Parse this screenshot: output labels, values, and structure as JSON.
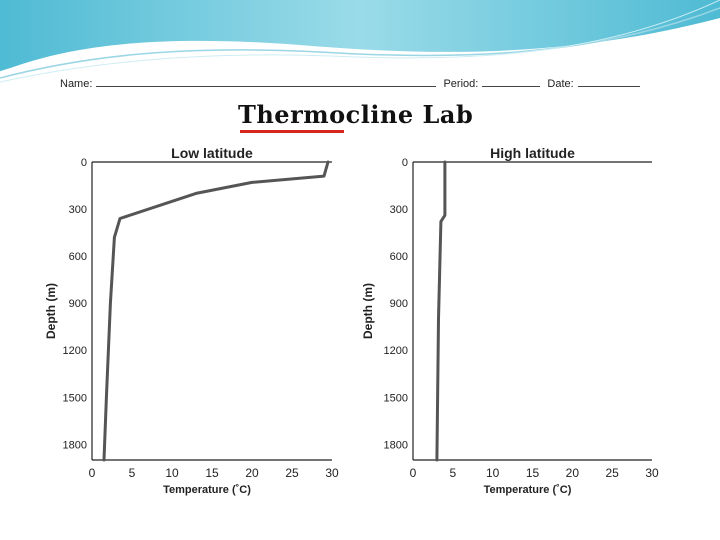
{
  "header": {
    "name_label": "Name:",
    "period_label": "Period:",
    "date_label": "Date:"
  },
  "title": "Thermocline Lab",
  "chart_data": [
    {
      "type": "line",
      "title": "Low latitude",
      "xlabel": "Temperature (˚C)",
      "ylabel": "Depth (m)",
      "xlim": [
        0,
        30
      ],
      "ylim": [
        0,
        1900
      ],
      "y_inverted": true,
      "xticks": [
        0,
        5,
        10,
        15,
        20,
        25,
        30
      ],
      "yticks": [
        0,
        300,
        600,
        900,
        1200,
        1500,
        1800
      ],
      "x_tick_labels": [
        "0",
        "5",
        "10",
        "15",
        "20",
        "25",
        "30"
      ],
      "y_tick_labels": [
        "0",
        "300",
        "600",
        "900",
        "1200",
        "1500",
        "1800"
      ],
      "grid": false,
      "series": [
        {
          "x": [
            29.5,
            29,
            20,
            13,
            3.5,
            2.8,
            2.3,
            1.8,
            1.5
          ],
          "y": [
            0,
            90,
            130,
            200,
            360,
            480,
            900,
            1500,
            1900
          ]
        }
      ]
    },
    {
      "type": "line",
      "title": "High latitude",
      "xlabel": "Temperature (˚C)",
      "ylabel": "Depth (m)",
      "xlim": [
        0,
        30
      ],
      "ylim": [
        0,
        1900
      ],
      "y_inverted": true,
      "xticks": [
        0,
        5,
        10,
        15,
        20,
        25,
        30
      ],
      "yticks": [
        0,
        300,
        600,
        900,
        1200,
        1500,
        1800
      ],
      "x_tick_labels": [
        "0",
        "5",
        "10",
        "15",
        "20",
        "25",
        "30"
      ],
      "y_tick_labels": [
        "0",
        "300",
        "600",
        "900",
        "1200",
        "1500",
        "1800"
      ],
      "grid": false,
      "series": [
        {
          "x": [
            4,
            4,
            3.5,
            3.2,
            3
          ],
          "y": [
            0,
            340,
            380,
            1000,
            1900
          ]
        }
      ]
    }
  ],
  "colors": {
    "line": "#555555",
    "axis": "#222222",
    "title_underline": "#d7261e",
    "banner_light": "#cdeef4",
    "banner_mid": "#7fd0e3",
    "banner_dark": "#3bb3cf"
  }
}
